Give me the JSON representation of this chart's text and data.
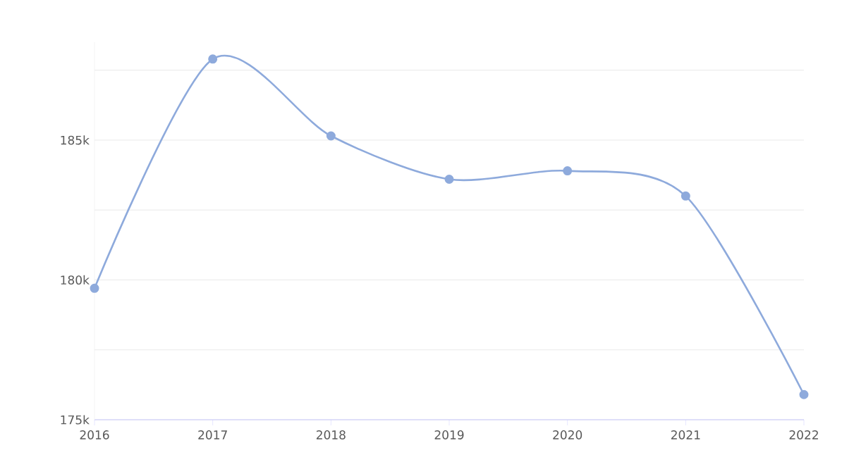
{
  "chart_data": {
    "type": "line",
    "x": [
      2016,
      2017,
      2018,
      2019,
      2020,
      2021,
      2022
    ],
    "series": [
      {
        "color": "#8eaadc",
        "values": [
          179700,
          187900,
          185150,
          183600,
          183900,
          183000,
          175900
        ]
      }
    ],
    "xlim": [
      2016,
      2022
    ],
    "xticks": [
      2016,
      2017,
      2018,
      2019,
      2020,
      2021,
      2022
    ],
    "ylim": [
      175000,
      188500
    ],
    "yticks": [
      {
        "value": 175000,
        "label": "175k"
      },
      {
        "value": 177500,
        "label": null
      },
      {
        "value": 180000,
        "label": "180k"
      },
      {
        "value": 182500,
        "label": null
      },
      {
        "value": 185000,
        "label": "185k"
      },
      {
        "value": 187500,
        "label": null
      }
    ],
    "grid": "y",
    "marker": "circle",
    "line_style": "solid"
  }
}
